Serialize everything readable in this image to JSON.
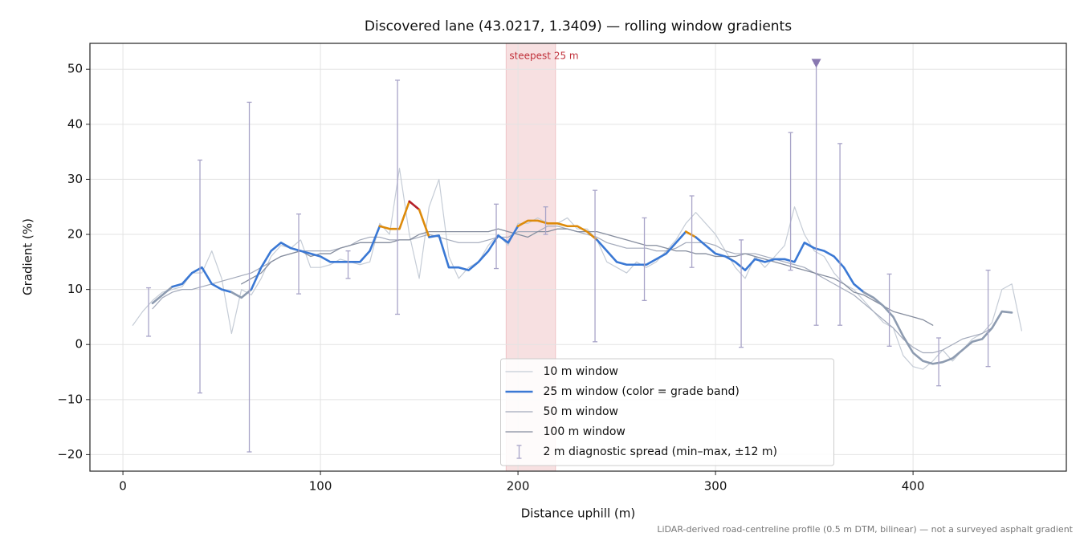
{
  "chart_data": {
    "type": "line",
    "title": "Discovered lane (43.0217, 1.3409) — rolling window gradients",
    "x_label": "Distance uphill (m)",
    "y_label": "Gradient (%)",
    "footnote": "LiDAR-derived road-centreline profile (0.5 m DTM, bilinear) — not a surveyed asphalt gradient",
    "xlim": [
      -16.7,
      477.6
    ],
    "ylim": [
      -23.0,
      54.7
    ],
    "xticks": [
      0,
      100,
      200,
      300,
      400
    ],
    "yticks": [
      {
        "value": -20,
        "label": "−20"
      },
      {
        "value": -10,
        "label": "−10"
      },
      0,
      10,
      20,
      30,
      40,
      50
    ],
    "grid": true,
    "legend": "lower center",
    "highlight": {
      "label": "steepest 25 m",
      "from": 194,
      "to": 219,
      "color": "#e8a5aa"
    },
    "x": [
      5,
      10,
      15,
      20,
      25,
      30,
      35,
      40,
      45,
      50,
      55,
      60,
      65,
      70,
      75,
      80,
      85,
      90,
      95,
      100,
      105,
      110,
      115,
      120,
      125,
      130,
      135,
      140,
      145,
      150,
      155,
      160,
      165,
      170,
      175,
      180,
      185,
      190,
      195,
      200,
      205,
      210,
      215,
      220,
      225,
      230,
      235,
      240,
      245,
      250,
      255,
      260,
      265,
      270,
      275,
      280,
      285,
      290,
      295,
      300,
      305,
      310,
      315,
      320,
      325,
      330,
      335,
      340,
      345,
      350,
      355,
      360,
      365,
      370,
      375,
      380,
      385,
      390,
      395,
      400,
      405,
      410,
      415,
      420,
      425,
      430,
      435,
      440,
      445,
      450,
      455
    ],
    "series": [
      {
        "name": "10 m window",
        "color": "#c5ccd6",
        "width": 1.2,
        "values": [
          3.5,
          6,
          8,
          9.5,
          10,
          10.5,
          13,
          13,
          17,
          12,
          2,
          10,
          9,
          12,
          16,
          18,
          17.5,
          19,
          14,
          14,
          14.5,
          15.5,
          15,
          14.5,
          15,
          22,
          20,
          32,
          20,
          12,
          25,
          30,
          16,
          12,
          14,
          15,
          18,
          20,
          18,
          22,
          22,
          23,
          22,
          22,
          23,
          21,
          21,
          19,
          15,
          14,
          13,
          15,
          14,
          15,
          17,
          19,
          22,
          24,
          22,
          20,
          17,
          14,
          12,
          16,
          14,
          16,
          18,
          25,
          20,
          17,
          16,
          13,
          11,
          10,
          8,
          6,
          4,
          3,
          -2,
          -4,
          -4.5,
          -3,
          -1,
          -3,
          -1,
          1,
          2,
          4,
          10,
          11,
          2.5
        ]
      },
      {
        "name": "25 m window (color = grade band)",
        "color": "#3a78d4",
        "width": 2.6,
        "values": [
          null,
          null,
          7.5,
          9,
          10.5,
          11,
          13,
          14,
          11,
          10,
          9.5,
          8.5,
          10,
          14,
          17,
          18.5,
          17.5,
          17,
          16.5,
          16,
          15,
          15,
          15,
          15,
          17,
          21.5,
          21,
          21,
          26,
          24.5,
          19.5,
          19.8,
          14,
          14,
          13.5,
          15,
          17,
          19.8,
          18.5,
          21.5,
          22.5,
          22.5,
          22,
          22,
          21.5,
          21.5,
          20.5,
          19,
          17,
          15,
          14.5,
          14.5,
          14.5,
          15.5,
          16.5,
          18.5,
          20.5,
          19.5,
          18,
          16.5,
          16,
          15,
          13.5,
          15.5,
          15,
          15.5,
          15.5,
          15,
          18.5,
          17.5,
          17,
          16,
          14,
          11,
          9.5,
          8.5,
          7,
          5,
          1.5,
          -1.5,
          -3,
          -3.5,
          -3.2,
          -2.5,
          -1,
          0.5,
          1,
          3,
          6,
          5.8,
          null
        ],
        "colors": [
          null,
          null,
          "#8d9bb0",
          "#8d9bb0",
          "#3a78d4",
          "#3a78d4",
          "#3a78d4",
          "#3a78d4",
          "#3a78d4",
          "#3a78d4",
          "#8d9bb0",
          "#8d9bb0",
          "#3a78d4",
          "#3a78d4",
          "#3a78d4",
          "#3a78d4",
          "#3a78d4",
          "#3a78d4",
          "#3a78d4",
          "#3a78d4",
          "#3a78d4",
          "#3a78d4",
          "#3a78d4",
          "#3a78d4",
          "#3a78d4",
          "#dd8a0a",
          "#dd8a0a",
          "#dd8a0a",
          "#b5202a",
          "#dd8a0a",
          "#3a78d4",
          "#3a78d4",
          "#3a78d4",
          "#3a78d4",
          "#3a78d4",
          "#3a78d4",
          "#3a78d4",
          "#3a78d4",
          "#3a78d4",
          "#dd8a0a",
          "#dd8a0a",
          "#dd8a0a",
          "#dd8a0a",
          "#dd8a0a",
          "#dd8a0a",
          "#dd8a0a",
          "#dd8a0a",
          "#3a78d4",
          "#3a78d4",
          "#3a78d4",
          "#3a78d4",
          "#3a78d4",
          "#3a78d4",
          "#3a78d4",
          "#3a78d4",
          "#3a78d4",
          "#dd8a0a",
          "#3a78d4",
          "#3a78d4",
          "#3a78d4",
          "#3a78d4",
          "#3a78d4",
          "#3a78d4",
          "#3a78d4",
          "#3a78d4",
          "#3a78d4",
          "#3a78d4",
          "#3a78d4",
          "#3a78d4",
          "#3a78d4",
          "#3a78d4",
          "#3a78d4",
          "#3a78d4",
          "#3a78d4",
          "#8d9bb0",
          "#8d9bb0",
          "#8d9bb0",
          "#8d9bb0",
          "#8d9bb0",
          "#8d9bb0",
          "#8d9bb0",
          "#8d9bb0",
          "#8d9bb0",
          "#8d9bb0",
          "#8d9bb0",
          "#8d9bb0",
          "#8d9bb0",
          "#8d9bb0",
          "#8d9bb0",
          "#8d9bb0",
          null
        ]
      },
      {
        "name": "50 m window",
        "color": "#a3aabb",
        "width": 1.2,
        "values": [
          null,
          null,
          6.5,
          8.5,
          9.5,
          10,
          10,
          10.5,
          11,
          11.5,
          12,
          12.5,
          13,
          14,
          15,
          16,
          16.5,
          17,
          17,
          17,
          17,
          17.5,
          18,
          19,
          19.5,
          19.5,
          19,
          19,
          19,
          19.5,
          20,
          19.5,
          19,
          18.5,
          18.5,
          18.5,
          19,
          19.5,
          19.5,
          20.5,
          20.5,
          20.5,
          21.5,
          21.5,
          21,
          20.5,
          20,
          19.5,
          18.5,
          18,
          17.5,
          17.5,
          17.5,
          17,
          17,
          17.5,
          18.5,
          18.5,
          18.5,
          18,
          17,
          16.5,
          16.5,
          16.5,
          16,
          15.5,
          15,
          14.5,
          14,
          13,
          12,
          11,
          10,
          9,
          7.5,
          6,
          4.5,
          3,
          1,
          -0.5,
          -1.5,
          -1.5,
          -1,
          0,
          1,
          1.5,
          2,
          3,
          null,
          null,
          null
        ]
      },
      {
        "name": "100 m window",
        "color": "#858d9e",
        "width": 1.3,
        "values": [
          null,
          null,
          null,
          null,
          null,
          null,
          null,
          null,
          null,
          null,
          null,
          11,
          12,
          13,
          15,
          16,
          16.5,
          17,
          16,
          16.5,
          16.5,
          17.5,
          18,
          18.5,
          18.5,
          18.5,
          18.5,
          19,
          19,
          20,
          20.5,
          20.5,
          20.5,
          20.5,
          20.5,
          20.5,
          20.5,
          21,
          20.5,
          20,
          19.5,
          20.5,
          20.5,
          21,
          21,
          20.5,
          20.5,
          20.5,
          20,
          19.5,
          19,
          18.5,
          18,
          18,
          17.5,
          17,
          17,
          16.5,
          16.5,
          16,
          16,
          16,
          16.5,
          16,
          15.5,
          15,
          14.5,
          14,
          13.5,
          13,
          12.5,
          12,
          11,
          9.5,
          9,
          8,
          7,
          6,
          5.5,
          5,
          4.5,
          3.5,
          null,
          null,
          null,
          null,
          null,
          null,
          null,
          null,
          null
        ]
      }
    ],
    "errorbars": {
      "name": "2 m diagnostic spread (min–max, ±12 m)",
      "color": "#a8a4c8",
      "x": [
        13,
        39,
        64,
        89,
        114,
        139,
        189,
        214,
        239,
        264,
        288,
        313,
        338,
        351,
        363,
        388,
        413,
        438
      ],
      "low": [
        1.5,
        -8.8,
        -19.5,
        9.2,
        12,
        5.5,
        13.8,
        20,
        0.5,
        8,
        14,
        -0.5,
        13.5,
        3.5,
        3.5,
        -0.3,
        -7.5,
        -4
      ],
      "high": [
        10.3,
        33.5,
        44,
        23.7,
        17,
        48,
        25.5,
        25,
        28,
        23,
        27,
        19,
        38.5,
        51,
        36.5,
        12.8,
        1.2,
        13.5
      ]
    },
    "peak_marker": {
      "x": 351,
      "y": 51,
      "color": "#8878b0"
    }
  }
}
